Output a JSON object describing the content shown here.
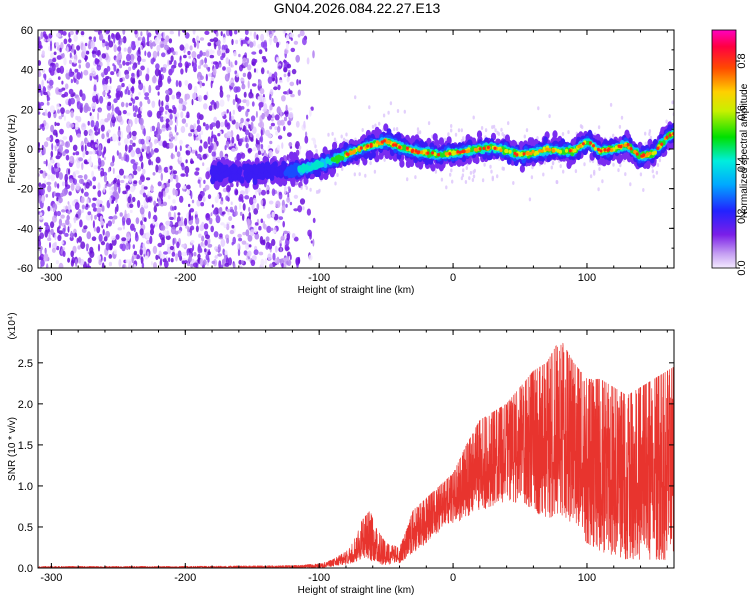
{
  "figure_title": "GN04.2026.084.22.27.E13",
  "chart_data": [
    {
      "type": "heatmap",
      "name": "spectrogram",
      "xlabel": "Height of straight line (km)",
      "ylabel": "Frequency (Hz)",
      "xlim": [
        -310,
        165
      ],
      "ylim": [
        -60,
        60
      ],
      "x_ticks": [
        -300,
        -200,
        -100,
        0,
        100
      ],
      "y_ticks": [
        -60,
        -40,
        -20,
        0,
        20,
        40,
        60
      ],
      "colorbar": {
        "label": "Normalized spectral amplitude",
        "range": [
          0,
          0.92
        ],
        "ticks": [
          0.0,
          0.2,
          0.4,
          0.6,
          0.8
        ],
        "tick_labels": [
          "0.0",
          "0.2",
          "0.4",
          "0.6",
          "0.8"
        ]
      },
      "features": {
        "noise_region_x": [
          -310,
          -115
        ],
        "trace": {
          "x": [
            -180,
            -150,
            -120,
            -110,
            -100,
            -90,
            -80,
            -70,
            -60,
            -50,
            -40,
            -30,
            -20,
            -10,
            0,
            10,
            20,
            30,
            40,
            50,
            60,
            70,
            80,
            90,
            100,
            110,
            120,
            130,
            140,
            150,
            160,
            165
          ],
          "freq_hz": [
            -12,
            -12,
            -11,
            -10,
            -8,
            -6,
            -3,
            0,
            2,
            4,
            1,
            -1,
            -2,
            -3,
            -2,
            -1,
            0,
            1,
            -1,
            -3,
            -2,
            0,
            -1,
            -1,
            4,
            -1,
            0,
            2,
            -4,
            -2,
            6,
            8
          ]
        }
      }
    },
    {
      "type": "line",
      "name": "snr",
      "xlabel": "Height of straight line (km)",
      "ylabel": "SNR (10 * v/v)",
      "scale_label": "(x10⁴)",
      "xlim": [
        -310,
        165
      ],
      "ylim": [
        0,
        2.9
      ],
      "x_ticks": [
        -300,
        -200,
        -100,
        0,
        100
      ],
      "y_ticks": [
        0.0,
        0.5,
        1.0,
        1.5,
        2.0,
        2.5
      ],
      "y_tick_labels": [
        "0.0",
        "0.5",
        "1.0",
        "1.5",
        "2.0",
        "2.5"
      ],
      "color": "#e8342e",
      "series": [
        {
          "name": "SNR envelope",
          "x": [
            -310,
            -200,
            -120,
            -100,
            -90,
            -80,
            -72,
            -68,
            -62,
            -58,
            -50,
            -40,
            -35,
            -30,
            -20,
            -10,
            0,
            10,
            20,
            30,
            40,
            50,
            60,
            70,
            80,
            90,
            100,
            110,
            120,
            130,
            140,
            150,
            160,
            165
          ],
          "upper": [
            0.02,
            0.02,
            0.03,
            0.05,
            0.1,
            0.2,
            0.4,
            0.58,
            0.7,
            0.5,
            0.3,
            0.25,
            0.45,
            0.7,
            0.85,
            1.0,
            1.15,
            1.5,
            1.8,
            1.9,
            2.0,
            2.2,
            2.4,
            2.5,
            2.8,
            2.5,
            2.3,
            2.3,
            2.2,
            2.1,
            2.2,
            2.3,
            2.4,
            2.45
          ],
          "lower": [
            0.0,
            0.0,
            0.0,
            0.0,
            0.02,
            0.04,
            0.08,
            0.12,
            0.1,
            0.05,
            0.04,
            0.06,
            0.12,
            0.18,
            0.3,
            0.45,
            0.55,
            0.6,
            0.7,
            0.75,
            0.8,
            0.8,
            0.7,
            0.6,
            0.65,
            0.5,
            0.3,
            0.2,
            0.15,
            0.1,
            0.1,
            0.1,
            0.1,
            0.1
          ]
        }
      ]
    }
  ]
}
